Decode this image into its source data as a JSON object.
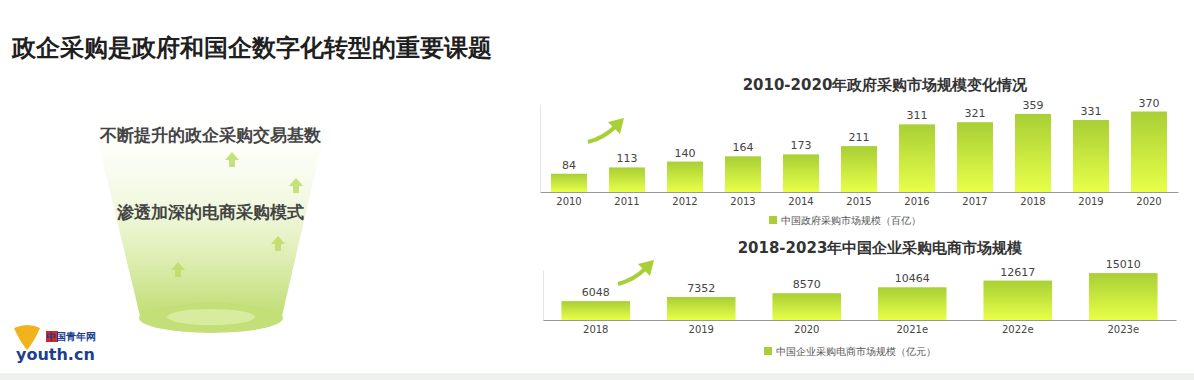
{
  "page": {
    "title": "政企采购是政府和国企数字化转型的重要课题",
    "points": [
      "不断提升的政企采购交易基数",
      "渗透加深的电商采购模式"
    ],
    "logo": {
      "name": "中国青年网",
      "site": "youth.cn"
    }
  },
  "chart_data": [
    {
      "type": "bar",
      "title": "2010-2020年政府采购市场规模变化情况",
      "categories": [
        "2010",
        "2011",
        "2012",
        "2013",
        "2014",
        "2015",
        "2016",
        "2017",
        "2018",
        "2019",
        "2020"
      ],
      "series": [
        {
          "name": "中国政府采购市场规模（百亿）",
          "color": "#a8cf35",
          "values": [
            84,
            113,
            140,
            164,
            173,
            211,
            311,
            321,
            359,
            331,
            370
          ]
        }
      ],
      "ylim": [
        0,
        400
      ],
      "yticks": [],
      "grid": false,
      "data_labels": true,
      "tick_labels": "x"
    },
    {
      "type": "bar",
      "title": "2018-2023年中国企业采购电商市场规模",
      "categories": [
        "2018",
        "2019",
        "2020",
        "2021e",
        "2022e",
        "2023e"
      ],
      "series": [
        {
          "name": "中国企业采购电商市场规模（亿元）",
          "color": "#a8cf35",
          "values": [
            6048,
            7352,
            8570,
            10464,
            12617,
            15010
          ]
        }
      ],
      "ylim": [
        0,
        16000
      ],
      "yticks": [],
      "grid": false,
      "data_labels": true,
      "tick_labels": "x"
    }
  ]
}
